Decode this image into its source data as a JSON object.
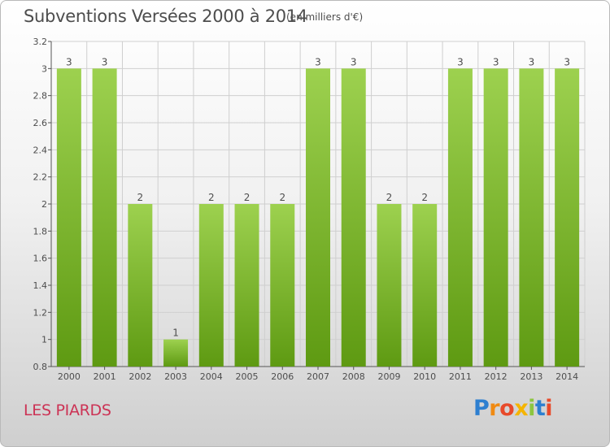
{
  "header": {
    "title": "Subventions Versées 2000 à 2014",
    "subtitle": "(en milliers d'€)"
  },
  "footer": {
    "commune": "LES PIARDS",
    "logo_letters": [
      "P",
      "r",
      "o",
      "x",
      "i",
      "t",
      "i"
    ]
  },
  "colors": {
    "bar_top": "#9dd14f",
    "bar_bottom": "#5e9a12",
    "grid": "#cfcfcf",
    "text": "#4d4d4d",
    "commune": "#cc3355"
  },
  "chart_data": {
    "type": "bar",
    "categories": [
      "2000",
      "2001",
      "2002",
      "2003",
      "2004",
      "2005",
      "2006",
      "2007",
      "2008",
      "2009",
      "2010",
      "2011",
      "2012",
      "2013",
      "2014"
    ],
    "values": [
      3,
      3,
      2,
      1,
      2,
      2,
      2,
      3,
      3,
      2,
      2,
      3,
      3,
      3,
      3
    ],
    "value_labels": [
      "3",
      "3",
      "2",
      "1",
      "2",
      "2",
      "2",
      "3",
      "3",
      "2",
      "2",
      "3",
      "3",
      "3",
      "3"
    ],
    "yticks": [
      "0.8",
      "1",
      "1.2",
      "1.4",
      "1.6",
      "1.8",
      "2",
      "2.2",
      "2.4",
      "2.6",
      "2.8",
      "3",
      "3.2"
    ],
    "ytick_values": [
      0.8,
      1,
      1.2,
      1.4,
      1.6,
      1.8,
      2,
      2.2,
      2.4,
      2.6,
      2.8,
      3,
      3.2
    ],
    "ylim": [
      0.8,
      3.2
    ],
    "grid": true,
    "title": "Subventions Versées 2000 à 2014",
    "xlabel": "",
    "ylabel": ""
  }
}
